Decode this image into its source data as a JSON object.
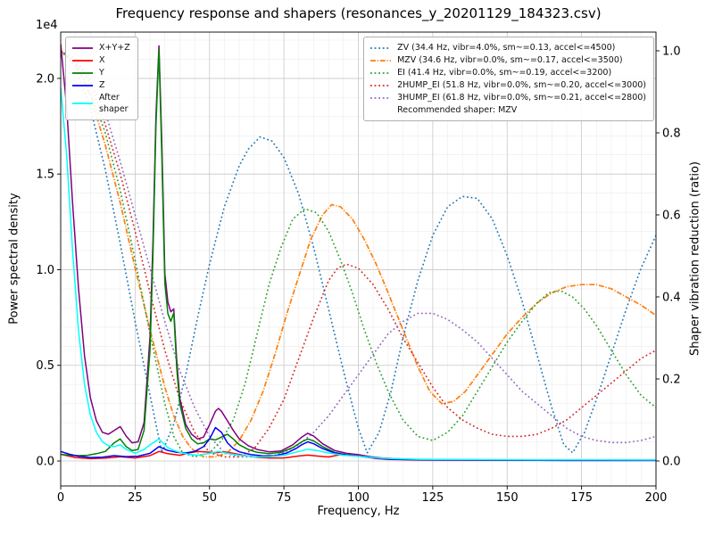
{
  "figure": {
    "title": "Frequency response and shapers (resonances_y_20201129_184323.csv)",
    "offset_text": "1e4",
    "xlabel": "Frequency, Hz",
    "ylabel_left": "Power spectral density",
    "ylabel_right": "Shaper vibration reduction (ratio)",
    "background": "#ffffff"
  },
  "chart_data": {
    "type": "line",
    "title": "Frequency response and shapers (resonances_y_20201129_184323.csv)",
    "xlabel": "Frequency, Hz",
    "ylabel": "Power spectral density",
    "ylabel2": "Shaper vibration reduction (ratio)",
    "grid": true,
    "xlim": [
      0,
      200
    ],
    "ylim_left": [
      -1305,
      22420
    ],
    "ylim_right": [
      -0.0609,
      1.0456
    ],
    "x_ticks": {
      "values": [
        0,
        25,
        50,
        75,
        100,
        125,
        150,
        175,
        200
      ],
      "labels": [
        "0",
        "25",
        "50",
        "75",
        "100",
        "125",
        "150",
        "175",
        "200"
      ]
    },
    "y_ticks_left": {
      "values": [
        0,
        5000,
        10000,
        15000,
        20000
      ],
      "labels": [
        "0.0",
        "0.5",
        "1.0",
        "1.5",
        "2.0"
      ]
    },
    "y_ticks_right": {
      "values": [
        0,
        0.2,
        0.4,
        0.6,
        0.8,
        1.0
      ],
      "labels": [
        "0.0",
        "0.2",
        "0.4",
        "0.6",
        "0.8",
        "1.0"
      ]
    },
    "legend_psd": {
      "entries": [
        {
          "label": "X+Y+Z",
          "color": "#800080",
          "style": "solid"
        },
        {
          "label": "X",
          "color": "#ff0000",
          "style": "solid"
        },
        {
          "label": "Y",
          "color": "#008000",
          "style": "solid"
        },
        {
          "label": "Z",
          "color": "#0000ff",
          "style": "solid"
        },
        {
          "label": "After\nshaper",
          "color": "#00ffff",
          "style": "solid"
        }
      ]
    },
    "legend_shapers": {
      "entries": [
        {
          "label": "ZV (34.4 Hz, vibr=4.0%, sm~=0.13, accel<=4500)",
          "color": "#1f77b4",
          "style": "dotted"
        },
        {
          "label": "MZV (34.6 Hz, vibr=0.0%, sm~=0.17, accel<=3500)",
          "color": "#ff7f0e",
          "style": "dashdot"
        },
        {
          "label": "EI (41.4 Hz, vibr=0.0%, sm~=0.19, accel<=3200)",
          "color": "#2ca02c",
          "style": "dotted"
        },
        {
          "label": "2HUMP_EI (51.8 Hz, vibr=0.0%, sm~=0.20, accel<=3000)",
          "color": "#d62728",
          "style": "dotted"
        },
        {
          "label": "3HUMP_EI (61.8 Hz, vibr=0.0%, sm~=0.21, accel<=2800)",
          "color": "#9467bd",
          "style": "dotted"
        }
      ],
      "note": "Recommended shaper: MZV"
    },
    "series": [
      {
        "id": "zv",
        "label": "ZV",
        "axis": "right",
        "color": "#1f77b4",
        "style": "dotted",
        "width": 1.6,
        "x": [
          0,
          5,
          10,
          15,
          20,
          25,
          30,
          34,
          38,
          42,
          46,
          50,
          55,
          60,
          63,
          67,
          71,
          75,
          80,
          85,
          90,
          95,
          100,
          103,
          107,
          111,
          115,
          120,
          125,
          130,
          135,
          140,
          145,
          150,
          155,
          160,
          165,
          169,
          172,
          176,
          180,
          185,
          190,
          195,
          200
        ],
        "y": [
          1.0,
          0.96,
          0.86,
          0.71,
          0.53,
          0.34,
          0.16,
          0.02,
          0.09,
          0.21,
          0.35,
          0.48,
          0.62,
          0.72,
          0.76,
          0.79,
          0.78,
          0.74,
          0.65,
          0.52,
          0.37,
          0.22,
          0.08,
          0.02,
          0.07,
          0.17,
          0.3,
          0.44,
          0.55,
          0.62,
          0.645,
          0.64,
          0.59,
          0.5,
          0.39,
          0.26,
          0.13,
          0.04,
          0.02,
          0.07,
          0.15,
          0.26,
          0.37,
          0.47,
          0.55
        ]
      },
      {
        "id": "mzv",
        "label": "MZV",
        "axis": "right",
        "color": "#ff7f0e",
        "style": "dashdot",
        "width": 1.7,
        "x": [
          0,
          5,
          10,
          15,
          20,
          25,
          30,
          35,
          38,
          41,
          44,
          48,
          52,
          56,
          60,
          64,
          68,
          72,
          76,
          80,
          84,
          88,
          91,
          94,
          98,
          102,
          106,
          110,
          115,
          120,
          124,
          128,
          132,
          136,
          140,
          145,
          150,
          155,
          160,
          165,
          170,
          175,
          180,
          185,
          190,
          195,
          200
        ],
        "y": [
          1.0,
          0.97,
          0.89,
          0.77,
          0.63,
          0.47,
          0.32,
          0.18,
          0.11,
          0.06,
          0.03,
          0.01,
          0.01,
          0.02,
          0.05,
          0.1,
          0.17,
          0.26,
          0.36,
          0.45,
          0.54,
          0.6,
          0.625,
          0.62,
          0.59,
          0.54,
          0.48,
          0.41,
          0.32,
          0.23,
          0.17,
          0.14,
          0.145,
          0.17,
          0.21,
          0.26,
          0.31,
          0.35,
          0.385,
          0.41,
          0.425,
          0.43,
          0.43,
          0.42,
          0.4,
          0.38,
          0.355
        ]
      },
      {
        "id": "ei",
        "label": "EI",
        "axis": "right",
        "color": "#2ca02c",
        "style": "dotted",
        "width": 1.6,
        "x": [
          0,
          5,
          10,
          15,
          20,
          25,
          30,
          35,
          38,
          41,
          45,
          50,
          54,
          58,
          62,
          66,
          70,
          74,
          78,
          82,
          86,
          90,
          94,
          98,
          102,
          106,
          110,
          115,
          120,
          125,
          130,
          135,
          140,
          145,
          150,
          155,
          160,
          164,
          168,
          172,
          176,
          180,
          185,
          190,
          195,
          200
        ],
        "y": [
          1.0,
          0.97,
          0.9,
          0.8,
          0.66,
          0.49,
          0.31,
          0.14,
          0.06,
          0.02,
          0.01,
          0.02,
          0.05,
          0.1,
          0.19,
          0.31,
          0.43,
          0.52,
          0.59,
          0.615,
          0.605,
          0.56,
          0.49,
          0.41,
          0.32,
          0.24,
          0.17,
          0.1,
          0.06,
          0.05,
          0.07,
          0.11,
          0.17,
          0.23,
          0.29,
          0.34,
          0.385,
          0.41,
          0.415,
          0.4,
          0.37,
          0.33,
          0.27,
          0.21,
          0.16,
          0.13
        ]
      },
      {
        "id": "hump2",
        "label": "2HUMP_EI",
        "axis": "right",
        "color": "#d62728",
        "style": "dotted",
        "width": 1.6,
        "x": [
          0,
          5,
          10,
          15,
          20,
          25,
          30,
          35,
          40,
          45,
          50,
          55,
          60,
          65,
          70,
          75,
          80,
          85,
          90,
          93,
          96,
          100,
          105,
          110,
          115,
          120,
          125,
          130,
          135,
          140,
          145,
          150,
          155,
          160,
          165,
          170,
          175,
          180,
          185,
          190,
          195,
          200
        ],
        "y": [
          1.0,
          0.98,
          0.92,
          0.82,
          0.7,
          0.56,
          0.41,
          0.27,
          0.15,
          0.07,
          0.02,
          0.01,
          0.01,
          0.03,
          0.08,
          0.15,
          0.25,
          0.35,
          0.44,
          0.47,
          0.48,
          0.47,
          0.43,
          0.37,
          0.3,
          0.24,
          0.18,
          0.13,
          0.1,
          0.08,
          0.065,
          0.06,
          0.06,
          0.065,
          0.08,
          0.1,
          0.13,
          0.16,
          0.19,
          0.22,
          0.25,
          0.27
        ]
      },
      {
        "id": "hump3",
        "label": "3HUMP_EI",
        "axis": "right",
        "color": "#9467bd",
        "style": "dotted",
        "width": 1.6,
        "x": [
          0,
          5,
          10,
          15,
          20,
          25,
          30,
          35,
          40,
          45,
          50,
          55,
          60,
          65,
          70,
          75,
          80,
          85,
          90,
          95,
          100,
          105,
          110,
          115,
          120,
          125,
          130,
          135,
          140,
          145,
          150,
          155,
          160,
          165,
          170,
          175,
          180,
          185,
          190,
          195,
          200
        ],
        "y": [
          1.0,
          0.98,
          0.93,
          0.85,
          0.73,
          0.6,
          0.47,
          0.34,
          0.22,
          0.13,
          0.06,
          0.02,
          0.01,
          0.01,
          0.01,
          0.02,
          0.04,
          0.07,
          0.11,
          0.16,
          0.21,
          0.26,
          0.31,
          0.34,
          0.36,
          0.36,
          0.345,
          0.32,
          0.29,
          0.25,
          0.21,
          0.17,
          0.14,
          0.11,
          0.08,
          0.06,
          0.05,
          0.045,
          0.045,
          0.05,
          0.06
        ]
      },
      {
        "id": "xyz",
        "label": "X+Y+Z",
        "axis": "left",
        "color": "#800080",
        "style": "solid",
        "width": 1.5,
        "x": [
          0,
          2,
          4,
          6,
          8,
          10,
          12,
          14,
          16,
          18,
          20,
          22,
          24,
          26,
          28,
          30,
          31,
          32,
          33,
          34,
          35,
          36,
          37,
          38,
          39,
          40,
          42,
          44,
          46,
          48,
          50,
          52,
          53,
          54,
          56,
          58,
          60,
          63,
          66,
          70,
          74,
          78,
          81,
          83,
          85,
          88,
          92,
          96,
          100,
          104,
          108,
          112,
          118,
          125,
          135,
          150,
          165,
          180,
          200
        ],
        "y": [
          21800,
          18500,
          13500,
          9000,
          5500,
          3300,
          2100,
          1500,
          1400,
          1600,
          1800,
          1300,
          950,
          1000,
          2000,
          6500,
          11500,
          18000,
          21700,
          16500,
          9800,
          8300,
          7800,
          7950,
          5200,
          3300,
          1900,
          1400,
          1150,
          1250,
          1900,
          2600,
          2750,
          2600,
          2100,
          1600,
          1150,
          800,
          600,
          480,
          520,
          850,
          1250,
          1450,
          1300,
          900,
          550,
          400,
          330,
          230,
          160,
          120,
          90,
          70,
          60,
          50,
          45,
          40,
          40
        ]
      },
      {
        "id": "x",
        "label": "X",
        "axis": "left",
        "color": "#ff0000",
        "style": "solid",
        "width": 1.5,
        "x": [
          0,
          5,
          10,
          15,
          20,
          25,
          30,
          33,
          36,
          40,
          43,
          46,
          49,
          52,
          55,
          58,
          62,
          66,
          70,
          75,
          80,
          83,
          86,
          90,
          94,
          98,
          102,
          106,
          110,
          120,
          140,
          160,
          180,
          200
        ],
        "y": [
          350,
          180,
          120,
          150,
          220,
          160,
          280,
          500,
          380,
          300,
          420,
          500,
          470,
          430,
          480,
          400,
          280,
          200,
          160,
          160,
          260,
          310,
          260,
          210,
          330,
          310,
          220,
          130,
          80,
          50,
          40,
          35,
          30,
          30
        ]
      },
      {
        "id": "y",
        "label": "Y",
        "axis": "left",
        "color": "#008000",
        "style": "solid",
        "width": 1.5,
        "x": [
          0,
          3,
          6,
          9,
          12,
          15,
          18,
          20,
          22,
          24,
          26,
          28,
          30,
          31,
          32,
          33,
          34,
          35,
          36,
          37,
          38,
          39,
          40,
          42,
          44,
          46,
          48,
          50,
          52,
          54,
          56,
          58,
          60,
          63,
          66,
          70,
          74,
          78,
          81,
          83,
          85,
          88,
          92,
          96,
          100,
          104,
          108,
          112,
          118,
          125,
          135,
          150,
          165,
          180,
          200
        ],
        "y": [
          350,
          300,
          280,
          300,
          380,
          500,
          950,
          1150,
          750,
          550,
          600,
          1600,
          5800,
          10800,
          17500,
          21500,
          15800,
          9300,
          7700,
          7300,
          7750,
          4800,
          3000,
          1700,
          1150,
          900,
          950,
          1150,
          1100,
          1250,
          1400,
          1150,
          850,
          600,
          450,
          380,
          450,
          700,
          1000,
          1150,
          1050,
          750,
          450,
          320,
          250,
          180,
          130,
          100,
          80,
          65,
          55,
          50,
          45,
          40,
          40
        ]
      },
      {
        "id": "z",
        "label": "Z",
        "axis": "left",
        "color": "#0000ff",
        "style": "solid",
        "width": 1.5,
        "x": [
          0,
          3,
          6,
          10,
          14,
          18,
          22,
          26,
          30,
          33,
          36,
          39,
          42,
          45,
          48,
          50,
          52,
          54,
          56,
          58,
          60,
          64,
          68,
          72,
          76,
          79,
          81,
          83,
          85,
          88,
          92,
          96,
          100,
          104,
          108,
          112,
          118,
          125,
          140,
          160,
          180,
          200
        ],
        "y": [
          500,
          350,
          250,
          180,
          200,
          280,
          230,
          250,
          400,
          750,
          550,
          450,
          420,
          500,
          750,
          1150,
          1750,
          1500,
          950,
          650,
          480,
          330,
          270,
          280,
          420,
          650,
          850,
          1000,
          900,
          650,
          420,
          310,
          260,
          180,
          120,
          90,
          70,
          55,
          45,
          35,
          30,
          30
        ]
      },
      {
        "id": "after",
        "label": "After\nshaper",
        "axis": "left",
        "color": "#00ffff",
        "style": "solid",
        "width": 1.5,
        "x": [
          0,
          2,
          4,
          6,
          8,
          10,
          12,
          14,
          16,
          18,
          20,
          22,
          25,
          28,
          30,
          32,
          33,
          34,
          36,
          38,
          40,
          43,
          46,
          50,
          53,
          56,
          60,
          65,
          70,
          75,
          80,
          83,
          86,
          90,
          95,
          100,
          105,
          110,
          120,
          140,
          160,
          180,
          200
        ],
        "y": [
          19500,
          16000,
          11000,
          6800,
          4000,
          2400,
          1500,
          1000,
          800,
          750,
          850,
          600,
          400,
          600,
          850,
          1050,
          1150,
          1000,
          700,
          550,
          450,
          350,
          300,
          400,
          500,
          400,
          300,
          230,
          220,
          300,
          500,
          620,
          550,
          420,
          300,
          250,
          180,
          130,
          90,
          70,
          60,
          55,
          50
        ]
      }
    ]
  }
}
